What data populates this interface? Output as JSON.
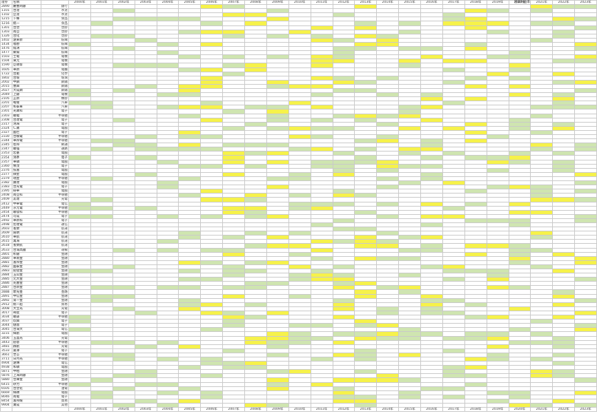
{
  "header": {
    "caption": "營業利益率",
    "code_label": "證券",
    "name_label": "名稱",
    "years": [
      "2000年",
      "2001年",
      "2002年",
      "2003年",
      "2004年",
      "2005年",
      "2006年",
      "2007年",
      "2008年",
      "2009年",
      "2010年",
      "2011年",
      "2012年",
      "2013年",
      "2014年",
      "2015年",
      "2016年",
      "2017年",
      "2018年",
      "2019年",
      "2020年",
      "2021年",
      "2022年",
      "2023年"
    ]
  },
  "rows": [
    {
      "code": "2890",
      "name": "慶豐商銀",
      "cat": "銀行"
    },
    {
      "code": "1101",
      "name": "台泥",
      "cat": "水泥"
    },
    {
      "code": "1102",
      "name": "亞泥",
      "cat": "水泥"
    },
    {
      "code": "1215",
      "name": "卜蜂",
      "cat": "食品"
    },
    {
      "code": "1216",
      "name": "統一",
      "cat": "食品"
    },
    {
      "code": "1301",
      "name": "台塑",
      "cat": "塑膠"
    },
    {
      "code": "1303",
      "name": "南亞",
      "cat": "塑膠"
    },
    {
      "code": "1326",
      "name": "台化",
      "cat": "塑膠"
    },
    {
      "code": "1402",
      "name": "遠東新",
      "cat": "紡織"
    },
    {
      "code": "1434",
      "name": "福懋",
      "cat": "紡織"
    },
    {
      "code": "1476",
      "name": "儒鴻",
      "cat": "紡織"
    },
    {
      "code": "1477",
      "name": "聚陽",
      "cat": "紡織"
    },
    {
      "code": "1503",
      "name": "士電",
      "cat": "電機"
    },
    {
      "code": "1504",
      "name": "東元",
      "cat": "電機"
    },
    {
      "code": "1590",
      "name": "亞德客",
      "cat": "電機"
    },
    {
      "code": "1605",
      "name": "華新",
      "cat": "電纜"
    },
    {
      "code": "1722",
      "name": "台肥",
      "cat": "化學"
    },
    {
      "code": "1802",
      "name": "台玻",
      "cat": "玻璃"
    },
    {
      "code": "2002",
      "name": "中鋼",
      "cat": "鋼鐵"
    },
    {
      "code": "2015",
      "name": "豐興",
      "cat": "鋼鐵"
    },
    {
      "code": "2027",
      "name": "大成鋼",
      "cat": "鋼鐵"
    },
    {
      "code": "2049",
      "name": "上銀",
      "cat": "電機"
    },
    {
      "code": "2105",
      "name": "正新",
      "cat": "橡膠"
    },
    {
      "code": "2201",
      "name": "裕隆",
      "cat": "汽車"
    },
    {
      "code": "2207",
      "name": "和泰車",
      "cat": "汽車"
    },
    {
      "code": "2301",
      "name": "光寶科",
      "cat": "電子"
    },
    {
      "code": "2303",
      "name": "聯電",
      "cat": "半導體"
    },
    {
      "code": "2308",
      "name": "台達電",
      "cat": "電子"
    },
    {
      "code": "2317",
      "name": "鴻海",
      "cat": "電子"
    },
    {
      "code": "2324",
      "name": "仁寶",
      "cat": "電腦"
    },
    {
      "code": "2327",
      "name": "國巨",
      "cat": "電子"
    },
    {
      "code": "2330",
      "name": "台積電",
      "cat": "半導體"
    },
    {
      "code": "2344",
      "name": "華邦電",
      "cat": "半導體"
    },
    {
      "code": "2345",
      "name": "智邦",
      "cat": "網通"
    },
    {
      "code": "2347",
      "name": "聯強",
      "cat": "通路"
    },
    {
      "code": "2353",
      "name": "宏碁",
      "cat": "電腦"
    },
    {
      "code": "2354",
      "name": "鴻準",
      "cat": "電子"
    },
    {
      "code": "2357",
      "name": "華碩",
      "cat": "電腦"
    },
    {
      "code": "2360",
      "name": "致茂",
      "cat": "電子"
    },
    {
      "code": "2376",
      "name": "技嘉",
      "cat": "電腦"
    },
    {
      "code": "2377",
      "name": "微星",
      "cat": "電腦"
    },
    {
      "code": "2379",
      "name": "瑞昱",
      "cat": "半導體"
    },
    {
      "code": "2382",
      "name": "廣達",
      "cat": "電腦"
    },
    {
      "code": "2383",
      "name": "台光電",
      "cat": "電子"
    },
    {
      "code": "2395",
      "name": "研華",
      "cat": "電腦"
    },
    {
      "code": "2408",
      "name": "南亞科",
      "cat": "半導體"
    },
    {
      "code": "2409",
      "name": "友達",
      "cat": "光電"
    },
    {
      "code": "2412",
      "name": "中華電",
      "cat": "電信"
    },
    {
      "code": "2449",
      "name": "京元電",
      "cat": "半導體"
    },
    {
      "code": "2454",
      "name": "聯發科",
      "cat": "半導體"
    },
    {
      "code": "2474",
      "name": "可成",
      "cat": "電子"
    },
    {
      "code": "2492",
      "name": "華新科",
      "cat": "電子"
    },
    {
      "code": "2498",
      "name": "宏達電",
      "cat": "通信"
    },
    {
      "code": "2603",
      "name": "長榮",
      "cat": "航運"
    },
    {
      "code": "2609",
      "name": "陽明",
      "cat": "航運"
    },
    {
      "code": "2610",
      "name": "華航",
      "cat": "航運"
    },
    {
      "code": "2615",
      "name": "萬海",
      "cat": "航運"
    },
    {
      "code": "2618",
      "name": "長榮航",
      "cat": "航運"
    },
    {
      "code": "2633",
      "name": "台灣高鐵",
      "cat": "運輸"
    },
    {
      "code": "2801",
      "name": "彰銀",
      "cat": "金融"
    },
    {
      "code": "2880",
      "name": "華南金",
      "cat": "金融"
    },
    {
      "code": "2881",
      "name": "富邦金",
      "cat": "金融"
    },
    {
      "code": "2882",
      "name": "國泰金",
      "cat": "金融"
    },
    {
      "code": "2883",
      "name": "開發金",
      "cat": "金融"
    },
    {
      "code": "2884",
      "name": "玉山金",
      "cat": "金融"
    },
    {
      "code": "2885",
      "name": "元大金",
      "cat": "金融"
    },
    {
      "code": "2886",
      "name": "兆豐金",
      "cat": "金融"
    },
    {
      "code": "2887",
      "name": "台新金",
      "cat": "金融"
    },
    {
      "code": "2888",
      "name": "新光金",
      "cat": "金融"
    },
    {
      "code": "2891",
      "name": "中信金",
      "cat": "金融"
    },
    {
      "code": "2892",
      "name": "第一金",
      "cat": "金融"
    },
    {
      "code": "2912",
      "name": "統一超",
      "cat": "貿易"
    },
    {
      "code": "3008",
      "name": "大立光",
      "cat": "光電"
    },
    {
      "code": "3017",
      "name": "奇鋐",
      "cat": "電子"
    },
    {
      "code": "3034",
      "name": "聯詠",
      "cat": "半導體"
    },
    {
      "code": "3037",
      "name": "欣興",
      "cat": "電子"
    },
    {
      "code": "3044",
      "name": "健鼎",
      "cat": "電子"
    },
    {
      "code": "3045",
      "name": "台灣大",
      "cat": "電信"
    },
    {
      "code": "3231",
      "name": "緯創",
      "cat": "電腦"
    },
    {
      "code": "3406",
      "name": "玉晶光",
      "cat": "光電"
    },
    {
      "code": "3443",
      "name": "創意",
      "cat": "半導體"
    },
    {
      "code": "3481",
      "name": "群創",
      "cat": "光電"
    },
    {
      "code": "3533",
      "name": "嘉澤",
      "cat": "電子"
    },
    {
      "code": "3661",
      "name": "世芯",
      "cat": "半導體"
    },
    {
      "code": "3711",
      "name": "日月光",
      "cat": "半導體"
    },
    {
      "code": "4904",
      "name": "遠傳",
      "cat": "電信"
    },
    {
      "code": "4938",
      "name": "和碩",
      "cat": "電腦"
    },
    {
      "code": "5871",
      "name": "中租",
      "cat": "金融"
    },
    {
      "code": "5876",
      "name": "上海商銀",
      "cat": "金融"
    },
    {
      "code": "5880",
      "name": "合庫金",
      "cat": "金融"
    },
    {
      "code": "6415",
      "name": "矽力",
      "cat": "半導體"
    },
    {
      "code": "6505",
      "name": "台塑化",
      "cat": "油電"
    },
    {
      "code": "6669",
      "name": "緯穎",
      "cat": "電腦"
    },
    {
      "code": "8046",
      "name": "南電",
      "cat": "電子"
    },
    {
      "code": "8454",
      "name": "富邦媒",
      "cat": "貿易"
    },
    {
      "code": "9904",
      "name": "寶成",
      "cat": "其他"
    },
    {
      "code": "9910",
      "name": "豐泰",
      "cat": "其他"
    },
    {
      "code": "9921",
      "name": "巨大",
      "cat": "其他"
    },
    {
      "code": "9945",
      "name": "潤泰新",
      "cat": "建材"
    }
  ],
  "legend": {
    "yellow": "#f6f24a",
    "green": "#cfe5b0"
  }
}
